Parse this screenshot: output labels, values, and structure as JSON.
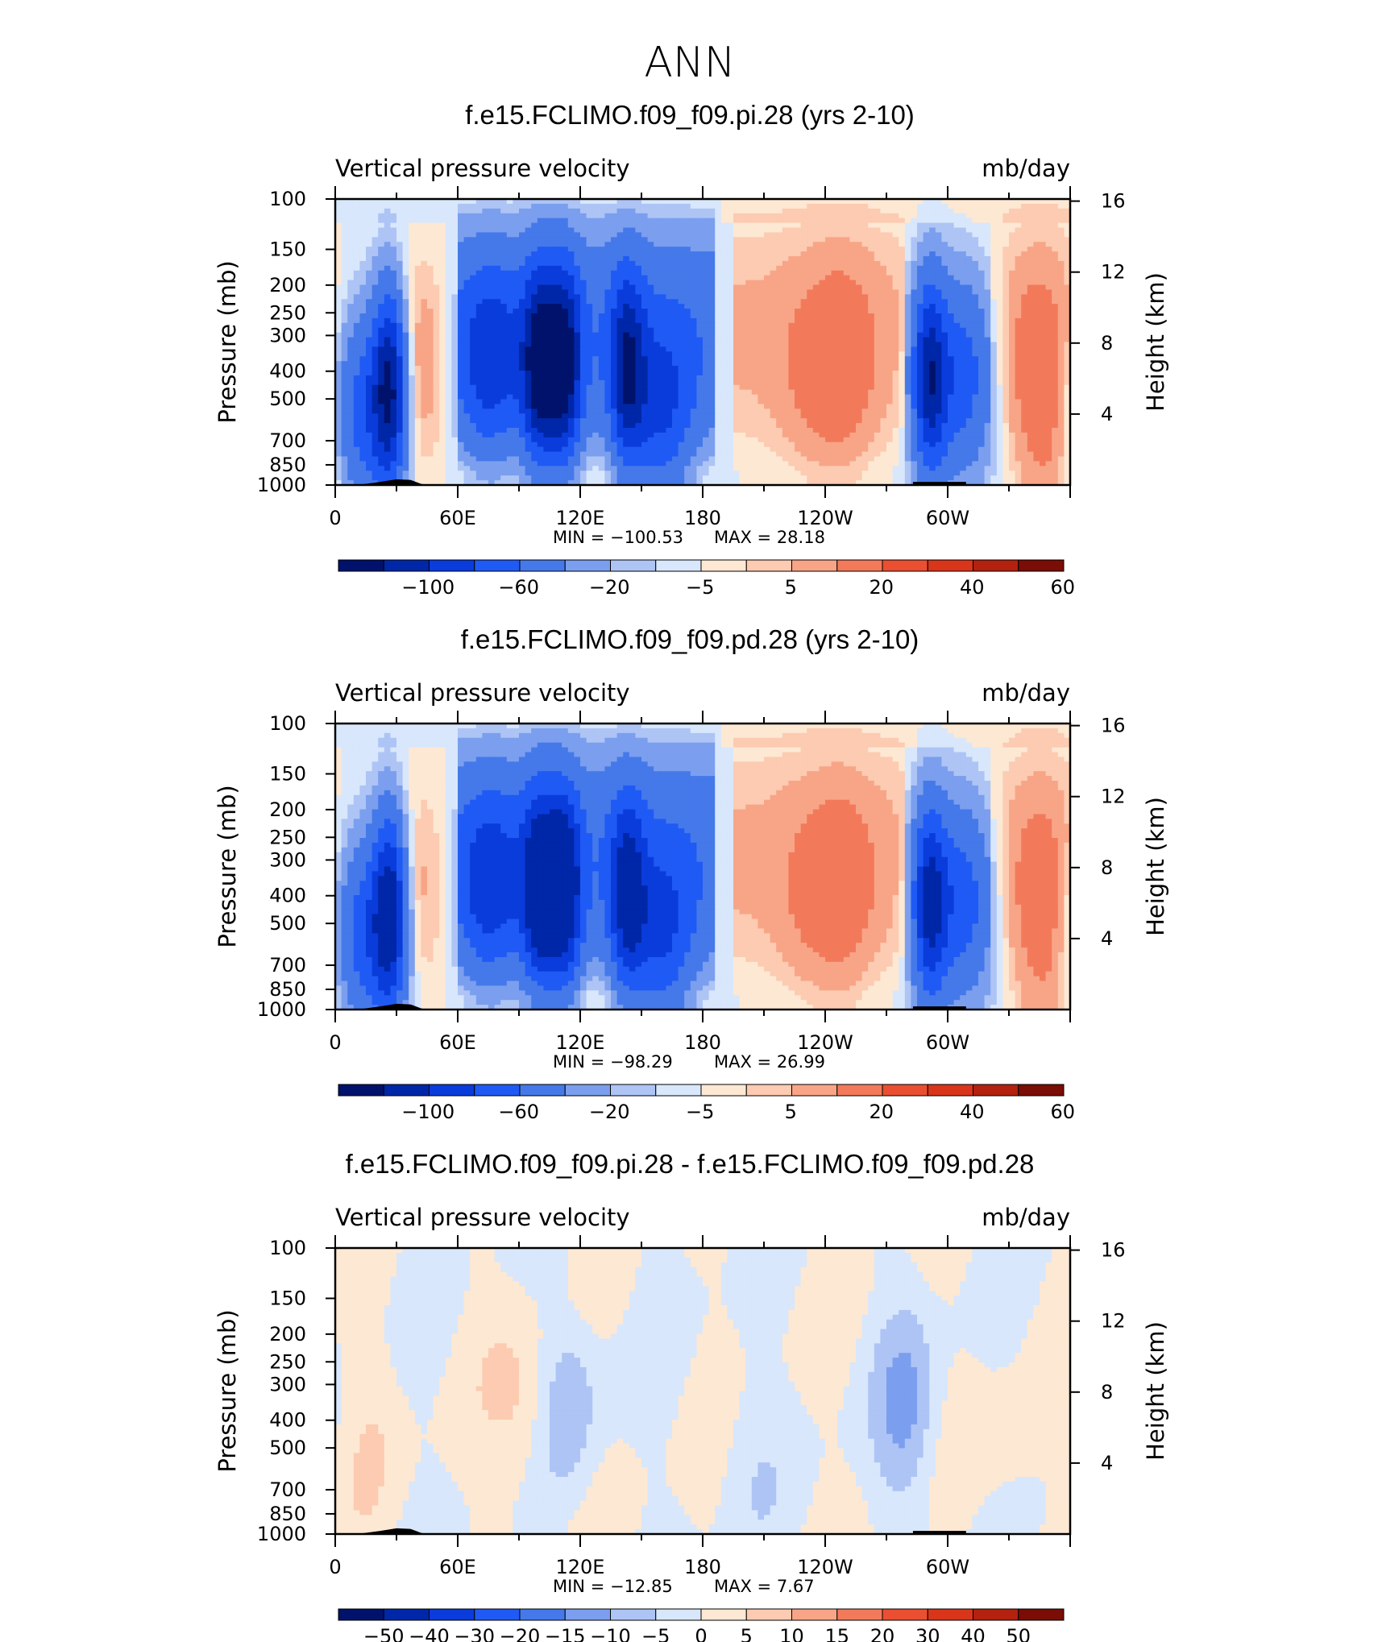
{
  "figure": {
    "title": "ANN",
    "panels": [
      {
        "title": "f.e15.FCLIMO.f09_f09.pi.28 (yrs 2-10)",
        "variable": "Vertical pressure velocity",
        "units": "mb/day",
        "min_label": "MIN = −100.53",
        "max_label": "MAX = 28.18",
        "palette": "full",
        "colorbar": {
          "ticks": [
            "−100",
            "−60",
            "−20",
            "−5",
            "5",
            "20",
            "40",
            "60"
          ]
        }
      },
      {
        "title": "f.e15.FCLIMO.f09_f09.pd.28 (yrs 2-10)",
        "variable": "Vertical pressure velocity",
        "units": "mb/day",
        "min_label": "MIN = −98.29",
        "max_label": "MAX = 26.99",
        "palette": "full",
        "colorbar": {
          "ticks": [
            "−100",
            "−60",
            "−20",
            "−5",
            "5",
            "20",
            "40",
            "60"
          ]
        }
      },
      {
        "title": "f.e15.FCLIMO.f09_f09.pi.28 - f.e15.FCLIMO.f09_f09.pd.28",
        "variable": "Vertical pressure velocity",
        "units": "mb/day",
        "min_label": "MIN = −12.85",
        "max_label": "MAX = 7.67",
        "palette": "diff",
        "colorbar": {
          "ticks": [
            "−50",
            "−40",
            "−30",
            "−20",
            "−15",
            "−10",
            "−5",
            "0",
            "5",
            "10",
            "15",
            "20",
            "30",
            "40",
            "50"
          ]
        }
      }
    ]
  },
  "axes": {
    "ylabel_left": "Pressure (mb)",
    "ylabel_right": "Height (km)",
    "pressure_ticks": [
      100,
      150,
      200,
      250,
      300,
      400,
      500,
      700,
      850,
      1000
    ],
    "height_ticks": [
      16,
      12,
      8,
      4
    ],
    "lon_ticks": [
      {
        "lon": 0,
        "label": "0"
      },
      {
        "lon": 60,
        "label": "60E"
      },
      {
        "lon": 120,
        "label": "120E"
      },
      {
        "lon": 180,
        "label": "180"
      },
      {
        "lon": 240,
        "label": "120W"
      },
      {
        "lon": 300,
        "label": "60W"
      }
    ],
    "xlim": [
      0,
      360
    ],
    "ylim": [
      1000,
      100
    ]
  },
  "colors": {
    "full": [
      "#00126b",
      "#0027a8",
      "#0a3cdc",
      "#1f5af5",
      "#4579ea",
      "#7b9fee",
      "#adc4f5",
      "#d8e7fb",
      "#fde8d3",
      "#fccbb1",
      "#f8a587",
      "#f27a5b",
      "#ea4f31",
      "#d9351a",
      "#b3210f",
      "#7a0d05"
    ],
    "diff": [
      "#00126b",
      "#0027a8",
      "#0a3cdc",
      "#1f5af5",
      "#4579ea",
      "#7b9fee",
      "#adc4f5",
      "#d8e7fb",
      "#fde8d3",
      "#fccbb1",
      "#f8a587",
      "#f27a5b",
      "#ea4f31",
      "#d9351a",
      "#b3210f",
      "#7a0d05"
    ]
  },
  "chart_data": [
    {
      "type": "heatmap",
      "title": "f.e15.FCLIMO.f09_f09.pi.28 (yrs 2-10)",
      "x_label": "",
      "y_label": "Pressure (mb)",
      "x_range": [
        0,
        360
      ],
      "y_range": [
        1000,
        100
      ],
      "min": -100.53,
      "max": 28.18,
      "levels": [
        -100,
        -80,
        -60,
        -40,
        -20,
        -10,
        -5,
        0,
        5,
        10,
        20,
        30,
        40,
        50,
        60
      ],
      "features": [
        {
          "lon": 14,
          "p": 550,
          "value": -50
        },
        {
          "lon": 27,
          "p": 450,
          "value": -95
        },
        {
          "lon": 39,
          "p": 380,
          "value": 20
        },
        {
          "lon": 76,
          "p": 380,
          "value": -45
        },
        {
          "lon": 100,
          "p": 390,
          "value": -85
        },
        {
          "lon": 112,
          "p": 390,
          "value": -90
        },
        {
          "lon": 143,
          "p": 400,
          "value": -70
        },
        {
          "lon": 160,
          "p": 600,
          "value": -45
        },
        {
          "lon": 230,
          "p": 420,
          "value": 10
        },
        {
          "lon": 248,
          "p": 380,
          "value": 26
        },
        {
          "lon": 291,
          "p": 420,
          "value": -85
        },
        {
          "lon": 307,
          "p": 420,
          "value": -50
        },
        {
          "lon": 345,
          "p": 360,
          "value": 25
        },
        {
          "lon": 350,
          "p": 920,
          "value": 15
        }
      ]
    },
    {
      "type": "heatmap",
      "title": "f.e15.FCLIMO.f09_f09.pd.28 (yrs 2-10)",
      "x_label": "",
      "y_label": "Pressure (mb)",
      "x_range": [
        0,
        360
      ],
      "y_range": [
        1000,
        100
      ],
      "min": -98.29,
      "max": 26.99,
      "levels": [
        -100,
        -80,
        -60,
        -40,
        -20,
        -10,
        -5,
        0,
        5,
        10,
        20,
        30,
        40,
        50,
        60
      ],
      "features": [
        {
          "lon": 14,
          "p": 550,
          "value": -50
        },
        {
          "lon": 27,
          "p": 450,
          "value": -90
        },
        {
          "lon": 39,
          "p": 380,
          "value": 15
        },
        {
          "lon": 76,
          "p": 380,
          "value": -45
        },
        {
          "lon": 100,
          "p": 390,
          "value": -80
        },
        {
          "lon": 112,
          "p": 390,
          "value": -85
        },
        {
          "lon": 143,
          "p": 400,
          "value": -65
        },
        {
          "lon": 160,
          "p": 600,
          "value": -45
        },
        {
          "lon": 230,
          "p": 420,
          "value": 10
        },
        {
          "lon": 248,
          "p": 380,
          "value": 24
        },
        {
          "lon": 291,
          "p": 420,
          "value": -80
        },
        {
          "lon": 307,
          "p": 420,
          "value": -50
        },
        {
          "lon": 345,
          "p": 360,
          "value": 22
        },
        {
          "lon": 350,
          "p": 920,
          "value": 14
        }
      ]
    },
    {
      "type": "heatmap",
      "title": "f.e15.FCLIMO.f09_f09.pi.28 - f.e15.FCLIMO.f09_f09.pd.28",
      "x_label": "",
      "y_label": "Pressure (mb)",
      "x_range": [
        0,
        360
      ],
      "y_range": [
        1000,
        100
      ],
      "min": -12.85,
      "max": 7.67,
      "levels": [
        -50,
        -40,
        -30,
        -20,
        -15,
        -10,
        -5,
        0,
        5,
        10,
        15,
        20,
        30,
        40,
        50
      ],
      "features": [
        {
          "lon": 115,
          "p": 350,
          "value": -8
        },
        {
          "lon": 280,
          "p": 380,
          "value": -10
        },
        {
          "lon": 92,
          "p": 380,
          "value": 6
        },
        {
          "lon": 18,
          "p": 400,
          "value": 3
        },
        {
          "lon": 200,
          "p": 500,
          "value": -3
        },
        {
          "lon": 330,
          "p": 600,
          "value": 3
        }
      ]
    }
  ]
}
